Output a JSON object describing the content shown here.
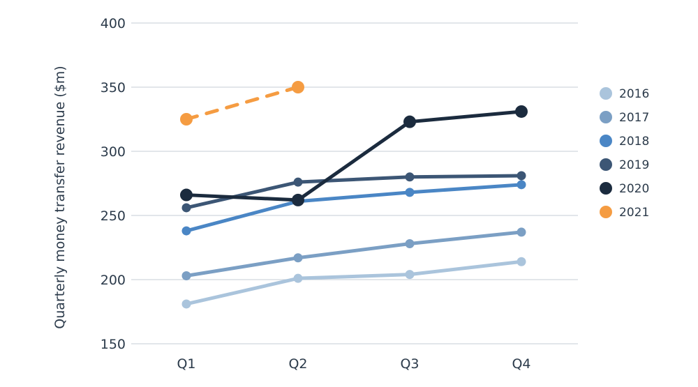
{
  "chart_data": {
    "type": "line",
    "title": "",
    "xlabel": "",
    "ylabel": "Quarterly money transfer revenue ($m)",
    "categories": [
      "Q1",
      "Q2",
      "Q3",
      "Q4"
    ],
    "ylim": [
      150,
      400
    ],
    "yticks": [
      150,
      200,
      250,
      300,
      350,
      400
    ],
    "grid": "horizontal",
    "legend_position": "right",
    "series": [
      {
        "name": "2016",
        "color": "#aac4dc",
        "dashed": false,
        "values": [
          181,
          201,
          204,
          214
        ]
      },
      {
        "name": "2017",
        "color": "#7b9fc4",
        "dashed": false,
        "values": [
          203,
          217,
          228,
          237
        ]
      },
      {
        "name": "2018",
        "color": "#4a86c5",
        "dashed": false,
        "values": [
          238,
          261,
          268,
          274
        ]
      },
      {
        "name": "2019",
        "color": "#3c5675",
        "dashed": false,
        "values": [
          256,
          276,
          280,
          281
        ]
      },
      {
        "name": "2020",
        "color": "#1b2b3e",
        "dashed": false,
        "values": [
          266,
          262,
          323,
          331
        ]
      },
      {
        "name": "2021",
        "color": "#f59c42",
        "dashed": true,
        "values": [
          325,
          350,
          null,
          null
        ]
      }
    ]
  }
}
